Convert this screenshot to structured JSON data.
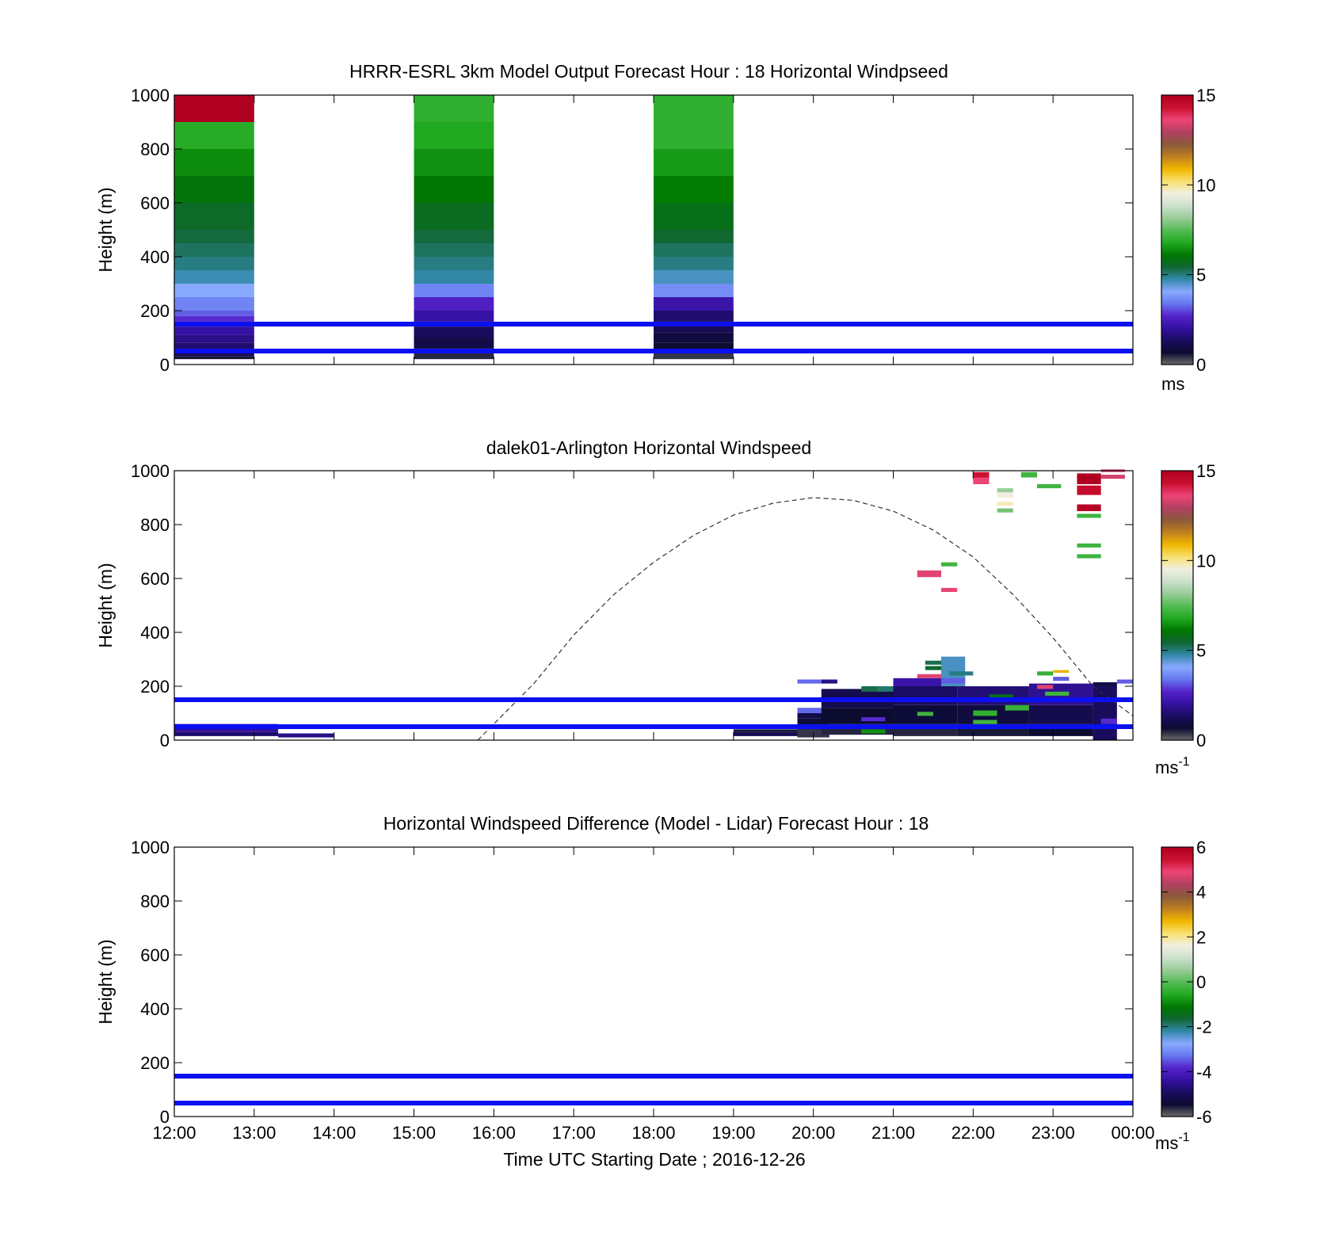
{
  "chart_data": [
    {
      "type": "heatmap",
      "title": "HRRR-ESRL 3km Model Output   Forecast Hour : 18 Horizontal Windpseed",
      "ylabel": "Height (m)",
      "ylim": [
        0,
        1000
      ],
      "yticks": [
        "0",
        "200",
        "400",
        "600",
        "800",
        "1000"
      ],
      "xlim": [
        12,
        24
      ],
      "colorbar": {
        "range": [
          0,
          15
        ],
        "ticks": [
          "0",
          "5",
          "10",
          "15"
        ],
        "unit": "ms"
      },
      "reference_heights": [
        50,
        150
      ],
      "columns": [
        {
          "t0": 12.0,
          "t1": 13.0,
          "cells": [
            [
              20,
              30,
              0.6
            ],
            [
              30,
              50,
              1.2
            ],
            [
              50,
              80,
              1.5
            ],
            [
              80,
              110,
              1.8
            ],
            [
              110,
              140,
              2.1
            ],
            [
              140,
              160,
              2.4
            ],
            [
              160,
              180,
              2.8
            ],
            [
              180,
              200,
              3.2
            ],
            [
              200,
              250,
              3.6
            ],
            [
              250,
              300,
              4.1
            ],
            [
              300,
              350,
              4.7
            ],
            [
              350,
              400,
              5.0
            ],
            [
              400,
              450,
              5.2
            ],
            [
              450,
              500,
              5.4
            ],
            [
              500,
              600,
              5.6
            ],
            [
              600,
              700,
              6.0
            ],
            [
              700,
              800,
              6.4
            ],
            [
              800,
              900,
              6.9
            ],
            [
              900,
              1000,
              15.0
            ]
          ]
        },
        {
          "t0": 15.0,
          "t1": 16.0,
          "cells": [
            [
              20,
              40,
              0.5
            ],
            [
              40,
              60,
              0.8
            ],
            [
              60,
              100,
              1.0
            ],
            [
              100,
              140,
              1.3
            ],
            [
              140,
              160,
              1.7
            ],
            [
              160,
              200,
              2.1
            ],
            [
              200,
              250,
              2.6
            ],
            [
              250,
              300,
              3.6
            ],
            [
              300,
              350,
              4.8
            ],
            [
              350,
              400,
              5.0
            ],
            [
              400,
              450,
              5.2
            ],
            [
              450,
              500,
              5.4
            ],
            [
              500,
              600,
              5.7
            ],
            [
              600,
              700,
              6.1
            ],
            [
              700,
              800,
              6.5
            ],
            [
              800,
              900,
              6.8
            ],
            [
              900,
              1000,
              7.0
            ]
          ]
        },
        {
          "t0": 18.0,
          "t1": 19.0,
          "cells": [
            [
              20,
              40,
              0.4
            ],
            [
              40,
              80,
              0.7
            ],
            [
              80,
              120,
              0.9
            ],
            [
              120,
              160,
              1.2
            ],
            [
              160,
              200,
              1.5
            ],
            [
              200,
              250,
              2.2
            ],
            [
              250,
              300,
              3.7
            ],
            [
              300,
              350,
              4.6
            ],
            [
              350,
              400,
              5.0
            ],
            [
              400,
              450,
              5.2
            ],
            [
              450,
              500,
              5.5
            ],
            [
              500,
              600,
              5.8
            ],
            [
              600,
              700,
              6.2
            ],
            [
              700,
              800,
              6.6
            ],
            [
              800,
              1000,
              7.0
            ]
          ]
        }
      ]
    },
    {
      "type": "heatmap",
      "title": "dalek01-Arlington  Horizontal Windspeed",
      "ylabel": "Height (m)",
      "ylim": [
        0,
        1000
      ],
      "yticks": [
        "0",
        "200",
        "400",
        "600",
        "800",
        "1000"
      ],
      "xlim": [
        12,
        24
      ],
      "colorbar": {
        "range": [
          0,
          15
        ],
        "ticks": [
          "0",
          "5",
          "10",
          "15"
        ],
        "unit": "ms",
        "unit_exp": "-1"
      },
      "reference_heights": [
        50,
        150
      ],
      "solar_elevation_curve": {
        "x": [
          15.8,
          16.5,
          17.0,
          17.5,
          18.0,
          18.5,
          19.0,
          19.5,
          20.0,
          20.5,
          21.0,
          21.5,
          22.0,
          22.5,
          23.0,
          23.5,
          24.0
        ],
        "y": [
          0,
          210,
          390,
          540,
          660,
          760,
          835,
          880,
          900,
          890,
          850,
          780,
          680,
          540,
          380,
          200,
          90
        ]
      },
      "cells": [
        [
          12.0,
          13.3,
          45,
          60,
          2.6
        ],
        [
          12.0,
          13.3,
          30,
          45,
          2.0
        ],
        [
          12.0,
          13.3,
          15,
          30,
          1.5
        ],
        [
          13.3,
          14.0,
          10,
          25,
          1.8
        ],
        [
          19.0,
          19.8,
          15,
          30,
          1.2
        ],
        [
          19.0,
          19.8,
          30,
          40,
          0.6
        ],
        [
          19.8,
          20.2,
          10,
          40,
          0.4
        ],
        [
          19.8,
          20.2,
          40,
          80,
          0.8
        ],
        [
          19.8,
          20.2,
          80,
          100,
          1.0
        ],
        [
          19.8,
          20.2,
          100,
          120,
          3.3
        ],
        [
          19.8,
          20.1,
          210,
          225,
          3.3
        ],
        [
          20.1,
          20.3,
          210,
          225,
          1.8
        ],
        [
          20.1,
          21.0,
          120,
          190,
          1.1
        ],
        [
          20.1,
          21.0,
          60,
          120,
          0.7
        ],
        [
          20.1,
          21.0,
          20,
          60,
          0.5
        ],
        [
          20.6,
          20.9,
          180,
          200,
          5.3
        ],
        [
          20.6,
          20.9,
          70,
          85,
          2.8
        ],
        [
          20.6,
          20.9,
          25,
          40,
          6.5
        ],
        [
          20.8,
          21.1,
          180,
          200,
          5.1
        ],
        [
          21.0,
          21.8,
          130,
          200,
          1.4
        ],
        [
          21.0,
          21.8,
          60,
          130,
          0.8
        ],
        [
          21.0,
          21.8,
          15,
          60,
          0.5
        ],
        [
          21.0,
          21.8,
          200,
          230,
          2.2
        ],
        [
          21.3,
          21.5,
          90,
          105,
          7.2
        ],
        [
          21.3,
          21.6,
          230,
          245,
          13.5
        ],
        [
          21.4,
          21.7,
          260,
          275,
          5.5
        ],
        [
          21.4,
          21.7,
          280,
          295,
          5.3
        ],
        [
          21.6,
          21.9,
          200,
          310,
          4.6
        ],
        [
          21.6,
          21.9,
          210,
          230,
          3.2
        ],
        [
          21.7,
          22.0,
          240,
          255,
          5.0
        ],
        [
          21.8,
          22.7,
          130,
          200,
          1.6
        ],
        [
          21.8,
          22.7,
          60,
          130,
          0.9
        ],
        [
          21.8,
          22.7,
          15,
          60,
          0.6
        ],
        [
          22.0,
          22.3,
          90,
          110,
          7.0
        ],
        [
          22.0,
          22.3,
          60,
          75,
          7.2
        ],
        [
          22.2,
          22.5,
          155,
          170,
          5.8
        ],
        [
          22.4,
          22.7,
          110,
          130,
          7.1
        ],
        [
          22.7,
          23.5,
          130,
          210,
          1.9
        ],
        [
          22.7,
          23.5,
          60,
          130,
          1.1
        ],
        [
          22.7,
          23.5,
          15,
          60,
          0.7
        ],
        [
          22.8,
          23.0,
          240,
          255,
          7.1
        ],
        [
          22.8,
          23.0,
          190,
          205,
          13.5
        ],
        [
          23.0,
          23.2,
          220,
          235,
          3.2
        ],
        [
          23.0,
          23.2,
          250,
          260,
          11.0
        ],
        [
          22.9,
          23.2,
          165,
          180,
          7.2
        ],
        [
          23.5,
          23.8,
          0,
          200,
          1.3
        ],
        [
          23.5,
          23.8,
          200,
          215,
          1.0
        ],
        [
          23.6,
          23.8,
          60,
          80,
          2.8
        ],
        [
          23.8,
          24.0,
          210,
          225,
          3.2
        ],
        [
          21.3,
          21.6,
          605,
          630,
          13.5
        ],
        [
          21.6,
          21.8,
          550,
          565,
          13.6
        ],
        [
          21.6,
          21.8,
          645,
          660,
          7.2
        ],
        [
          22.0,
          22.2,
          975,
          995,
          14.3
        ],
        [
          22.0,
          22.2,
          950,
          975,
          13.6
        ],
        [
          22.3,
          22.5,
          900,
          925,
          9.5
        ],
        [
          22.3,
          22.5,
          920,
          935,
          8.2
        ],
        [
          22.3,
          22.5,
          870,
          885,
          9.8
        ],
        [
          22.3,
          22.5,
          845,
          860,
          7.8
        ],
        [
          22.6,
          22.8,
          975,
          995,
          7.2
        ],
        [
          22.8,
          23.1,
          935,
          950,
          7.2
        ],
        [
          23.3,
          23.6,
          950,
          990,
          15.0
        ],
        [
          23.3,
          23.6,
          910,
          945,
          14.5
        ],
        [
          23.3,
          23.6,
          850,
          875,
          14.8
        ],
        [
          23.3,
          23.6,
          825,
          840,
          7.2
        ],
        [
          23.3,
          23.6,
          715,
          730,
          7.2
        ],
        [
          23.3,
          23.6,
          675,
          690,
          7.2
        ],
        [
          23.6,
          23.9,
          995,
          1005,
          13.5
        ],
        [
          23.6,
          23.9,
          970,
          985,
          13.3
        ]
      ]
    },
    {
      "type": "heatmap",
      "title": "Horizontal Windspeed Difference (Model - Lidar) Forecast Hour : 18",
      "ylabel": "Height (m)",
      "xlabel": "Time UTC  Starting Date ; 2016-12-26",
      "ylim": [
        0,
        1000
      ],
      "yticks": [
        "0",
        "200",
        "400",
        "600",
        "800",
        "1000"
      ],
      "xlim": [
        12,
        24
      ],
      "xticks": [
        "12:00",
        "13:00",
        "14:00",
        "15:00",
        "16:00",
        "17:00",
        "18:00",
        "19:00",
        "20:00",
        "21:00",
        "22:00",
        "23:00",
        "00:00"
      ],
      "colorbar": {
        "range": [
          -6,
          6
        ],
        "ticks": [
          "-6",
          "-4",
          "-2",
          "0",
          "2",
          "4",
          "6"
        ],
        "unit": "ms",
        "unit_exp": "-1"
      },
      "reference_heights": [
        50,
        150
      ],
      "cells": []
    }
  ],
  "colors": {
    "reference_line": "#0a10f0",
    "colormap": [
      "#6e6e6e",
      "#0c0c30",
      "#1a0c60",
      "#3311a0",
      "#5522cc",
      "#6677ee",
      "#88aaff",
      "#3388aa",
      "#116633",
      "#007700",
      "#22aa22",
      "#55bb55",
      "#99cc99",
      "#cce0cc",
      "#f0f0e0",
      "#f8e070",
      "#f0b800",
      "#c08020",
      "#8a5a3a",
      "#b04060",
      "#ee4477",
      "#cc1030",
      "#b00020"
    ]
  }
}
